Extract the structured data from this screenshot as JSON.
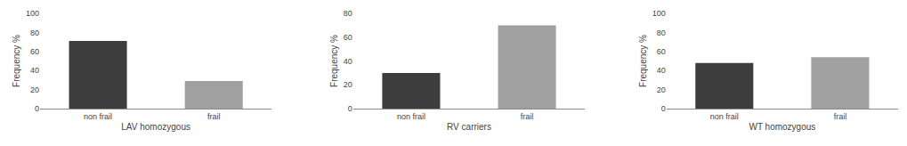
{
  "chart_data": [
    {
      "type": "bar",
      "x_label": "LAV homozygous",
      "y_label": "Frequency %",
      "categories": [
        "non frail",
        "frail"
      ],
      "values": [
        71,
        29
      ],
      "colors": [
        "#3d3d3d",
        "#a0a0a0"
      ],
      "ylim": [
        0,
        100
      ],
      "yticks": [
        0,
        20,
        40,
        60,
        80,
        100
      ],
      "grid": false
    },
    {
      "type": "bar",
      "x_label": "RV carriers",
      "y_label": "Frequency %",
      "categories": [
        "non frail",
        "frail"
      ],
      "values": [
        30,
        70
      ],
      "colors": [
        "#3d3d3d",
        "#a0a0a0"
      ],
      "ylim": [
        0,
        80
      ],
      "yticks": [
        0,
        20,
        40,
        60,
        80
      ],
      "grid": false
    },
    {
      "type": "bar",
      "x_label": "WT homozygous",
      "y_label": "Frequency %",
      "categories": [
        "non frail",
        "frail"
      ],
      "values": [
        48,
        54
      ],
      "colors": [
        "#3d3d3d",
        "#a0a0a0"
      ],
      "ylim": [
        0,
        100
      ],
      "yticks": [
        0,
        20,
        40,
        60,
        80,
        100
      ],
      "grid": false
    }
  ]
}
